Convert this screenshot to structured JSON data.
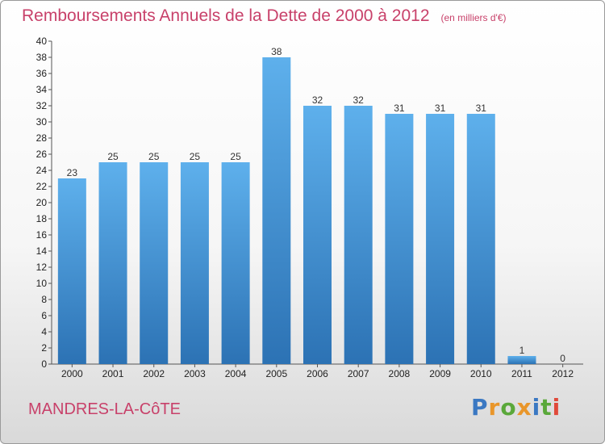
{
  "title": "Remboursements Annuels de la Dette de 2000 à 2012",
  "unit": "(en milliers d'€)",
  "commune": "MANDRES-LA-CôTE",
  "logo": {
    "text": "Proxiti",
    "letters": [
      {
        "ch": "P",
        "color": "#3a78c2"
      },
      {
        "ch": "r",
        "color": "#e9962a"
      },
      {
        "ch": "o",
        "color": "#5aa83a"
      },
      {
        "ch": "x",
        "color": "#e9962a"
      },
      {
        "ch": "i",
        "color": "#3a78c2"
      },
      {
        "ch": "t",
        "color": "#5aa83a"
      },
      {
        "ch": "i",
        "color": "#e04a3a"
      }
    ]
  },
  "colors": {
    "bar_top": "#5eb0ec",
    "bar_bottom": "#2c72b4",
    "accent": "#c8416a"
  },
  "chart_data": {
    "type": "bar",
    "categories": [
      "2000",
      "2001",
      "2002",
      "2003",
      "2004",
      "2005",
      "2006",
      "2007",
      "2008",
      "2009",
      "2010",
      "2011",
      "2012"
    ],
    "values": [
      23,
      25,
      25,
      25,
      25,
      38,
      32,
      32,
      31,
      31,
      31,
      1,
      0
    ],
    "ylim": [
      0,
      40
    ],
    "yticks": [
      0,
      2,
      4,
      6,
      8,
      10,
      12,
      14,
      16,
      18,
      20,
      22,
      24,
      26,
      28,
      30,
      32,
      34,
      36,
      38,
      40
    ],
    "grid": false,
    "legend": false
  }
}
